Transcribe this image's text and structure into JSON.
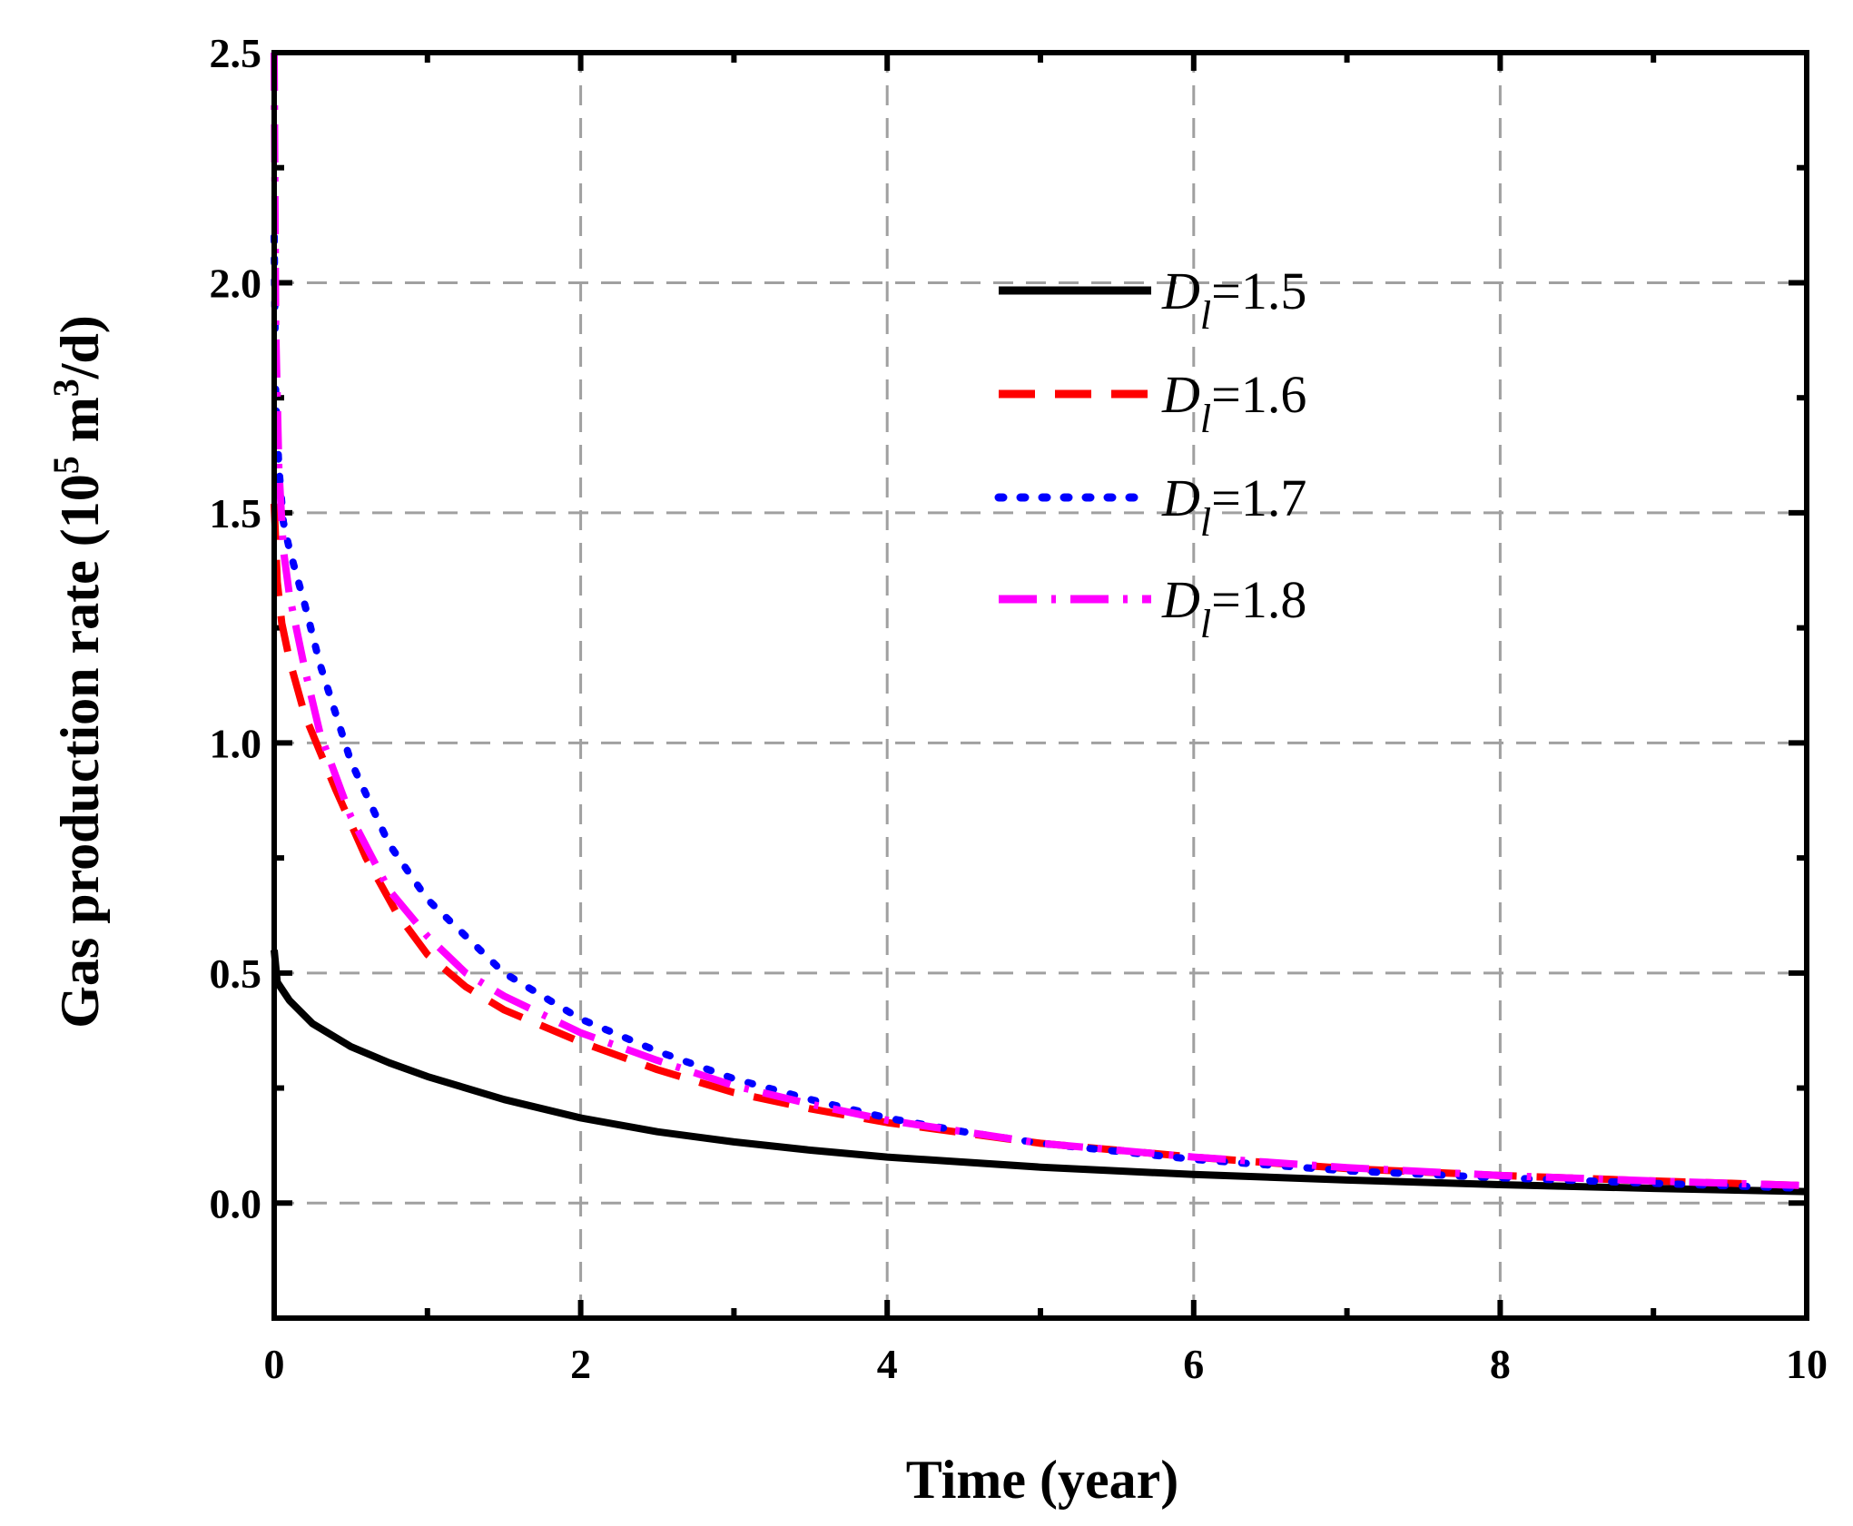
{
  "chart_data": {
    "type": "line",
    "title": "",
    "xlabel": "Time (year)",
    "ylabel": {
      "prefix": "Gas production rate (10",
      "exp1": "5",
      "middle": " m",
      "exp2": "3",
      "suffix": "/d)"
    },
    "xlim": [
      0,
      10
    ],
    "ylim": [
      -0.25,
      2.5
    ],
    "grid": true,
    "legend_position": "upper-right",
    "xticks": [
      "0",
      "2",
      "4",
      "6",
      "8",
      "10"
    ],
    "yticks": [
      "0.0",
      "0.5",
      "1.0",
      "1.5",
      "2.0",
      "2.5"
    ],
    "series": [
      {
        "name": "D_l=1.5",
        "var": "D",
        "sub": "l",
        "value_text": "=1.5",
        "color": "#000000",
        "style": "solid",
        "x": [
          0,
          0.02,
          0.1,
          0.25,
          0.5,
          0.75,
          1,
          1.5,
          2,
          2.5,
          3,
          3.5,
          4,
          5,
          6,
          7,
          8,
          9,
          10
        ],
        "y": [
          0.55,
          0.48,
          0.44,
          0.39,
          0.34,
          0.305,
          0.275,
          0.225,
          0.185,
          0.155,
          0.133,
          0.115,
          0.1,
          0.078,
          0.062,
          0.05,
          0.04,
          0.032,
          0.025
        ]
      },
      {
        "name": "D_l=1.6",
        "var": "D",
        "sub": "l",
        "value_text": "=1.6",
        "color": "#ff0000",
        "style": "dash",
        "x": [
          0,
          0.02,
          0.05,
          0.1,
          0.2,
          0.4,
          0.6,
          0.8,
          1,
          1.25,
          1.5,
          2,
          2.5,
          3,
          3.5,
          4,
          5,
          6,
          7,
          8,
          9,
          10
        ],
        "y": [
          1.52,
          1.35,
          1.26,
          1.18,
          1.06,
          0.9,
          0.75,
          0.63,
          0.54,
          0.47,
          0.42,
          0.35,
          0.29,
          0.24,
          0.205,
          0.175,
          0.13,
          0.1,
          0.075,
          0.06,
          0.048,
          0.038
        ]
      },
      {
        "name": "D_l=1.7",
        "var": "D",
        "sub": "l",
        "value_text": "=1.7",
        "color": "#0000ff",
        "style": "dot",
        "x": [
          0,
          0.01,
          0.03,
          0.06,
          0.1,
          0.2,
          0.3,
          0.5,
          0.75,
          1,
          1.25,
          1.5,
          2,
          2.5,
          3,
          3.5,
          4,
          4.5,
          5,
          6,
          7,
          8,
          9,
          10
        ],
        "y": [
          2.1,
          1.75,
          1.6,
          1.48,
          1.42,
          1.3,
          1.17,
          0.96,
          0.78,
          0.66,
          0.58,
          0.5,
          0.4,
          0.33,
          0.27,
          0.225,
          0.185,
          0.155,
          0.13,
          0.095,
          0.07,
          0.055,
          0.043,
          0.032
        ]
      },
      {
        "name": "D_l=1.8",
        "var": "D",
        "sub": "l",
        "value_text": "=1.8",
        "color": "#ff00ff",
        "style": "dashdot",
        "x": [
          0,
          0.01,
          0.03,
          0.06,
          0.1,
          0.2,
          0.3,
          0.5,
          0.75,
          1,
          1.25,
          1.5,
          2,
          2.5,
          3,
          3.5,
          4,
          4.5,
          5,
          6,
          7,
          8,
          9,
          10
        ],
        "y": [
          2.5,
          1.9,
          1.6,
          1.42,
          1.32,
          1.16,
          1.02,
          0.84,
          0.68,
          0.58,
          0.5,
          0.45,
          0.37,
          0.31,
          0.255,
          0.215,
          0.18,
          0.155,
          0.13,
          0.1,
          0.077,
          0.06,
          0.048,
          0.038
        ]
      }
    ]
  }
}
